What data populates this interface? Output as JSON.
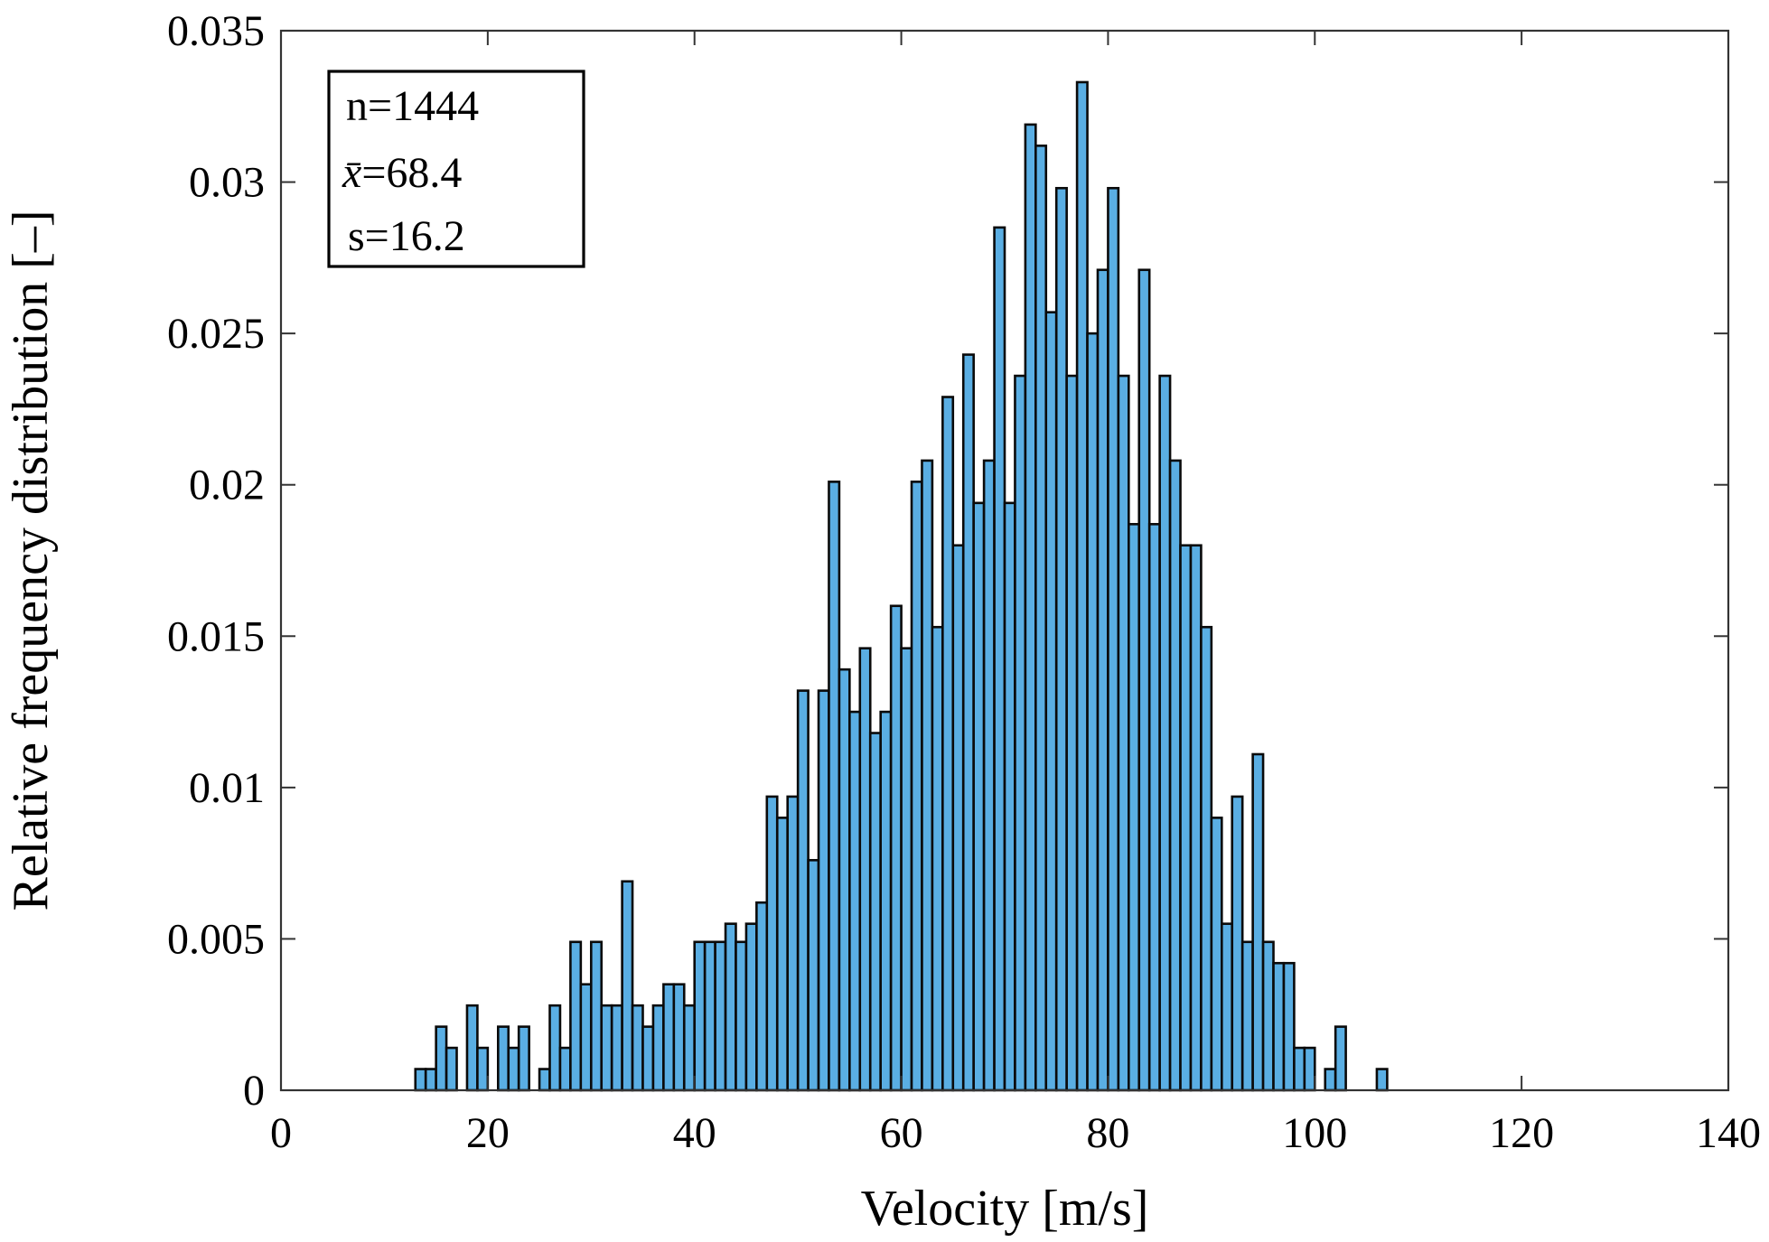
{
  "chart_data": {
    "type": "bar",
    "title": "",
    "xlabel": "Velocity [m/s]",
    "ylabel": "Relative frequency distribution [–]",
    "xlim": [
      0,
      140
    ],
    "ylim": [
      0,
      0.035
    ],
    "bin_width": 1,
    "x_ticks": [
      "0",
      "20",
      "40",
      "60",
      "80",
      "100",
      "120",
      "140"
    ],
    "x_tick_values": [
      0,
      20,
      40,
      60,
      80,
      100,
      120,
      140
    ],
    "y_ticks": [
      "0",
      "0.005",
      "0.01",
      "0.015",
      "0.02",
      "0.025",
      "0.03",
      "0.035"
    ],
    "y_tick_values": [
      0,
      0.005,
      0.01,
      0.015,
      0.02,
      0.025,
      0.03,
      0.035
    ],
    "grid": false,
    "bar_color": "#5aaee3",
    "edge_color": "#0a0a0a",
    "annotation": {
      "position": "top-left",
      "n_label": "n=1444",
      "mean_symbol": "x̄",
      "mean_value": "=68.4",
      "sd_label": "s=16.2"
    },
    "bins": [
      {
        "x": 13.5,
        "y": 0.0007
      },
      {
        "x": 14.5,
        "y": 0.0007
      },
      {
        "x": 15.5,
        "y": 0.0021
      },
      {
        "x": 16.5,
        "y": 0.0014
      },
      {
        "x": 17.5,
        "y": 0.0
      },
      {
        "x": 18.5,
        "y": 0.0028
      },
      {
        "x": 19.5,
        "y": 0.0014
      },
      {
        "x": 20.5,
        "y": 0.0
      },
      {
        "x": 21.5,
        "y": 0.0021
      },
      {
        "x": 22.5,
        "y": 0.0014
      },
      {
        "x": 23.5,
        "y": 0.0021
      },
      {
        "x": 24.5,
        "y": 0.0
      },
      {
        "x": 25.5,
        "y": 0.0007
      },
      {
        "x": 26.5,
        "y": 0.0028
      },
      {
        "x": 27.5,
        "y": 0.0014
      },
      {
        "x": 28.5,
        "y": 0.0049
      },
      {
        "x": 29.5,
        "y": 0.0035
      },
      {
        "x": 30.5,
        "y": 0.0049
      },
      {
        "x": 31.5,
        "y": 0.0028
      },
      {
        "x": 32.5,
        "y": 0.0028
      },
      {
        "x": 33.5,
        "y": 0.0069
      },
      {
        "x": 34.5,
        "y": 0.0028
      },
      {
        "x": 35.5,
        "y": 0.0021
      },
      {
        "x": 36.5,
        "y": 0.0028
      },
      {
        "x": 37.5,
        "y": 0.0035
      },
      {
        "x": 38.5,
        "y": 0.0035
      },
      {
        "x": 39.5,
        "y": 0.0028
      },
      {
        "x": 40.5,
        "y": 0.0049
      },
      {
        "x": 41.5,
        "y": 0.0049
      },
      {
        "x": 42.5,
        "y": 0.0049
      },
      {
        "x": 43.5,
        "y": 0.0055
      },
      {
        "x": 44.5,
        "y": 0.0049
      },
      {
        "x": 45.5,
        "y": 0.0055
      },
      {
        "x": 46.5,
        "y": 0.0062
      },
      {
        "x": 47.5,
        "y": 0.0097
      },
      {
        "x": 48.5,
        "y": 0.009
      },
      {
        "x": 49.5,
        "y": 0.0097
      },
      {
        "x": 50.5,
        "y": 0.0132
      },
      {
        "x": 51.5,
        "y": 0.0076
      },
      {
        "x": 52.5,
        "y": 0.0132
      },
      {
        "x": 53.5,
        "y": 0.0201
      },
      {
        "x": 54.5,
        "y": 0.0139
      },
      {
        "x": 55.5,
        "y": 0.0125
      },
      {
        "x": 56.5,
        "y": 0.0146
      },
      {
        "x": 57.5,
        "y": 0.0118
      },
      {
        "x": 58.5,
        "y": 0.0125
      },
      {
        "x": 59.5,
        "y": 0.016
      },
      {
        "x": 60.5,
        "y": 0.0146
      },
      {
        "x": 61.5,
        "y": 0.0201
      },
      {
        "x": 62.5,
        "y": 0.0208
      },
      {
        "x": 63.5,
        "y": 0.0153
      },
      {
        "x": 64.5,
        "y": 0.0229
      },
      {
        "x": 65.5,
        "y": 0.018
      },
      {
        "x": 66.5,
        "y": 0.0243
      },
      {
        "x": 67.5,
        "y": 0.0194
      },
      {
        "x": 68.5,
        "y": 0.0208
      },
      {
        "x": 69.5,
        "y": 0.0285
      },
      {
        "x": 70.5,
        "y": 0.0194
      },
      {
        "x": 71.5,
        "y": 0.0236
      },
      {
        "x": 72.5,
        "y": 0.0319
      },
      {
        "x": 73.5,
        "y": 0.0312
      },
      {
        "x": 74.5,
        "y": 0.0257
      },
      {
        "x": 75.5,
        "y": 0.0298
      },
      {
        "x": 76.5,
        "y": 0.0236
      },
      {
        "x": 77.5,
        "y": 0.0333
      },
      {
        "x": 78.5,
        "y": 0.025
      },
      {
        "x": 79.5,
        "y": 0.0271
      },
      {
        "x": 80.5,
        "y": 0.0298
      },
      {
        "x": 81.5,
        "y": 0.0236
      },
      {
        "x": 82.5,
        "y": 0.0187
      },
      {
        "x": 83.5,
        "y": 0.0271
      },
      {
        "x": 84.5,
        "y": 0.0187
      },
      {
        "x": 85.5,
        "y": 0.0236
      },
      {
        "x": 86.5,
        "y": 0.0208
      },
      {
        "x": 87.5,
        "y": 0.018
      },
      {
        "x": 88.5,
        "y": 0.018
      },
      {
        "x": 89.5,
        "y": 0.0153
      },
      {
        "x": 90.5,
        "y": 0.009
      },
      {
        "x": 91.5,
        "y": 0.0055
      },
      {
        "x": 92.5,
        "y": 0.0097
      },
      {
        "x": 93.5,
        "y": 0.0049
      },
      {
        "x": 94.5,
        "y": 0.0111
      },
      {
        "x": 95.5,
        "y": 0.0049
      },
      {
        "x": 96.5,
        "y": 0.0042
      },
      {
        "x": 97.5,
        "y": 0.0042
      },
      {
        "x": 98.5,
        "y": 0.0014
      },
      {
        "x": 99.5,
        "y": 0.0014
      },
      {
        "x": 100.5,
        "y": 0.0
      },
      {
        "x": 101.5,
        "y": 0.0007
      },
      {
        "x": 102.5,
        "y": 0.0021
      },
      {
        "x": 103.5,
        "y": 0.0
      },
      {
        "x": 104.5,
        "y": 0.0
      },
      {
        "x": 105.5,
        "y": 0.0
      },
      {
        "x": 106.5,
        "y": 0.0007
      }
    ]
  }
}
